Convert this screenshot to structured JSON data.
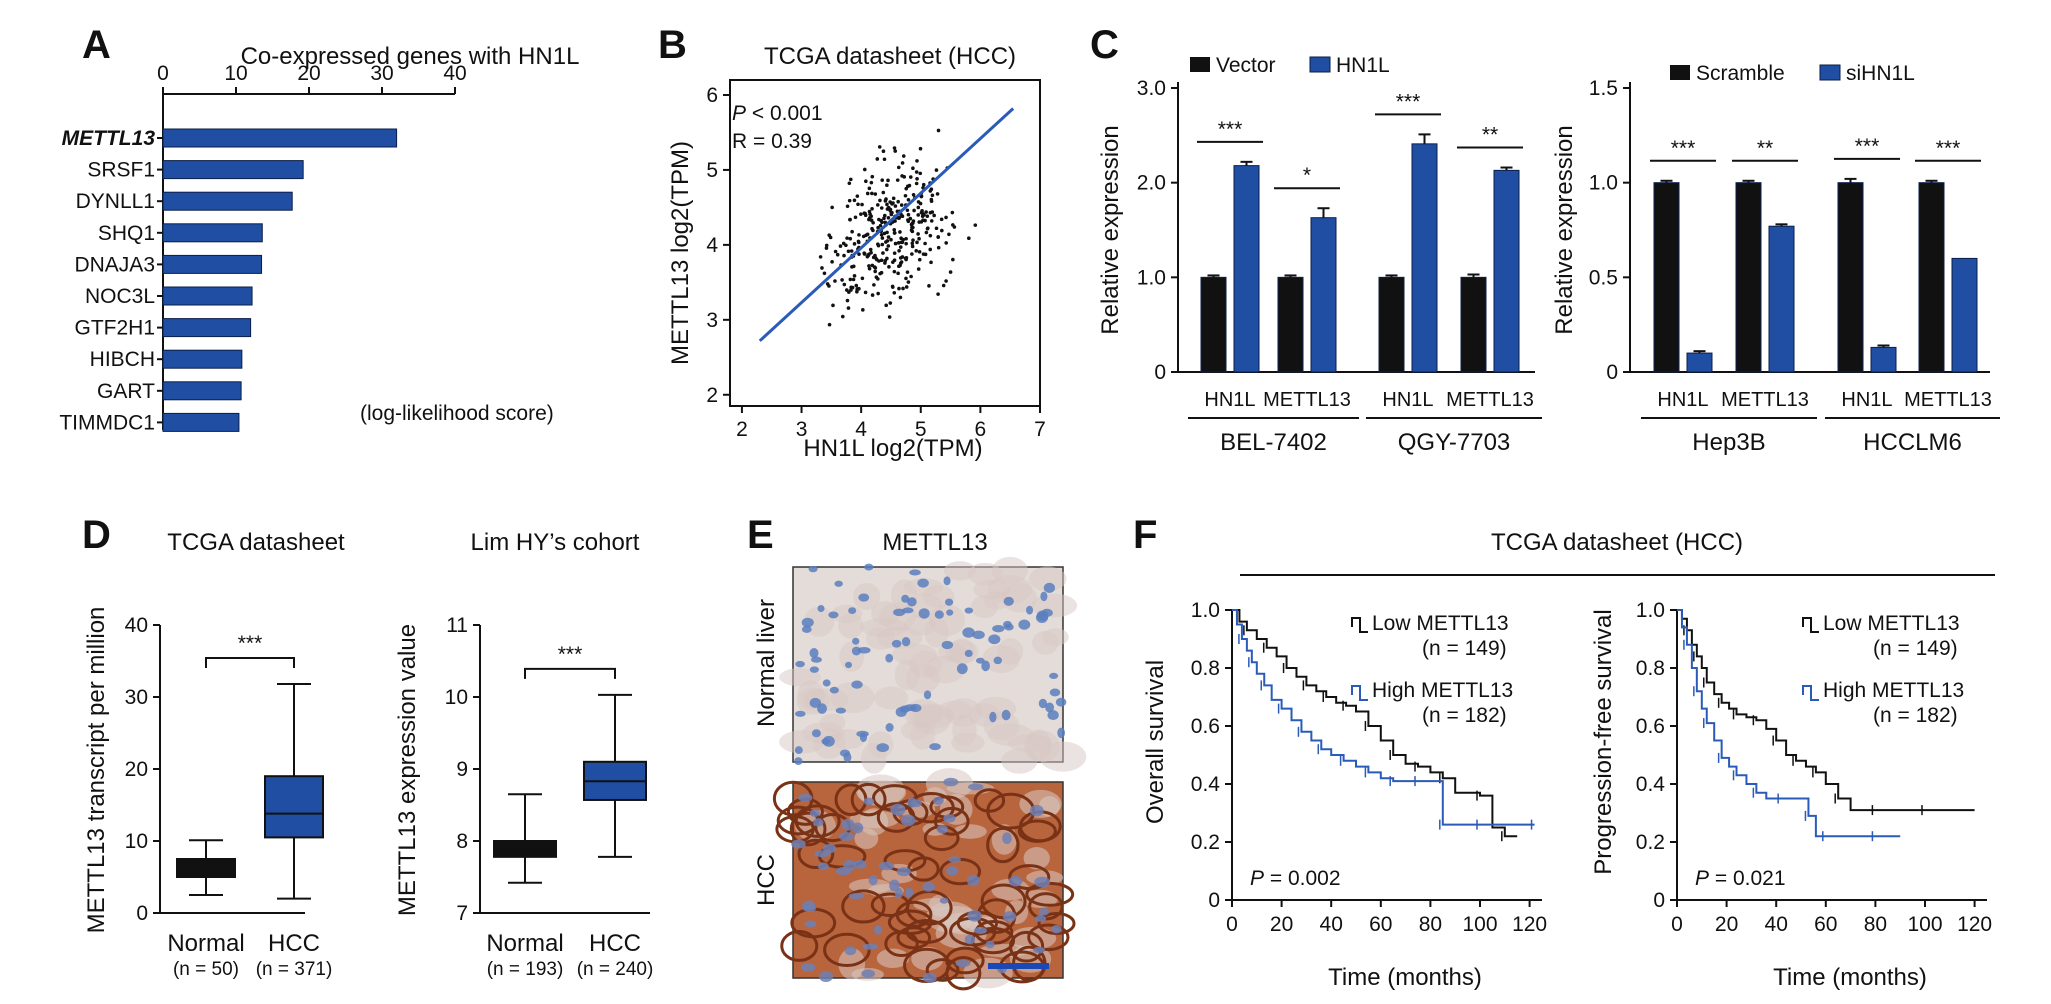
{
  "colors": {
    "blue": "#1f4ea3",
    "black": "#111111",
    "blue_line": "#2a5bb8"
  },
  "panelA": {
    "letter": "A",
    "title": "Co-expressed genes with HN1L",
    "xticks": [
      "0",
      "10",
      "20",
      "30",
      "40"
    ],
    "note": "(log-likelihood score)"
  },
  "panelB": {
    "letter": "B",
    "title": "TCGA datasheet (HCC)",
    "xlabel": "HN1L log2(TPM)",
    "ylabel": "METTL13 log2(TPM)",
    "xticks": [
      "2",
      "3",
      "4",
      "5",
      "6",
      "7"
    ],
    "yticks": [
      "2",
      "3",
      "4",
      "5",
      "6"
    ],
    "p_label": "P",
    "p_value": " < 0.001",
    "r_text": "R = 0.39"
  },
  "panelC": {
    "letter": "C",
    "ylabel": "Relative expression",
    "left": {
      "legend": [
        "Vector",
        "HN1L"
      ],
      "yticks": [
        "0",
        "1.0",
        "2.0",
        "3.0"
      ],
      "cats": [
        "HN1L",
        "METTL13",
        "HN1L",
        "METTL13"
      ],
      "groups": [
        "BEL-7402",
        "QGY-7703"
      ],
      "sig": [
        "***",
        "*",
        "***",
        "**"
      ]
    },
    "right": {
      "legend": [
        "Scramble",
        "siHN1L"
      ],
      "yticks": [
        "0",
        "0.5",
        "1.0",
        "1.5"
      ],
      "cats": [
        "HN1L",
        "METTL13",
        "HN1L",
        "METTL13"
      ],
      "groups": [
        "Hep3B",
        "HCCLM6"
      ],
      "sig": [
        "***",
        "**",
        "***",
        "***"
      ]
    }
  },
  "panelD": {
    "letter": "D",
    "left": {
      "title": "TCGA datasheet",
      "ylabel": "METTL13 transcript per million",
      "yticks": [
        "0",
        "10",
        "20",
        "30",
        "40"
      ],
      "cats": [
        "Normal",
        "HCC"
      ],
      "ns": [
        "(n = 50)",
        "(n = 371)"
      ],
      "sig": "***"
    },
    "right": {
      "title": "Lim HY’s cohort",
      "ylabel": "METTL13 expression value",
      "yticks": [
        "7",
        "8",
        "9",
        "10",
        "11"
      ],
      "cats": [
        "Normal",
        "HCC"
      ],
      "ns": [
        "(n = 193)",
        "(n = 240)"
      ],
      "sig": "***"
    }
  },
  "panelE": {
    "letter": "E",
    "title": "METTL13",
    "rows": [
      "Normal liver",
      "HCC"
    ]
  },
  "panelF": {
    "letter": "F",
    "title": "TCGA datasheet (HCC)",
    "xlabel": "Time (months)",
    "xticks": [
      "0",
      "20",
      "40",
      "60",
      "80",
      "100",
      "120"
    ],
    "yticks": [
      "0",
      "0.2",
      "0.4",
      "0.6",
      "0.8",
      "1.0"
    ],
    "left": {
      "ylabel": "Overall survival",
      "p_label": "P",
      "p_value": " = 0.002",
      "low_label": "Low METTL13",
      "low_n": "(n = 149)",
      "high_label": "High METTL13",
      "high_n": "(n = 182)"
    },
    "right": {
      "ylabel": "Progression-free survival",
      "p_label": "P",
      "p_value": " = 0.021",
      "low_label": "Low METTL13",
      "low_n": "(n = 149)",
      "high_label": "High METTL13",
      "high_n": "(n = 182)"
    }
  },
  "chart_data": [
    {
      "panel": "A",
      "type": "bar",
      "orientation": "horizontal",
      "title": "Co-expressed genes with HN1L",
      "categories": [
        "METTL13",
        "SRSF1",
        "DYNLL1",
        "SHQ1",
        "DNAJA3",
        "NOC3L",
        "GTF2H1",
        "HIBCH",
        "GART",
        "TIMMDC1"
      ],
      "values": [
        32,
        19.2,
        17.7,
        13.6,
        13.5,
        12.2,
        12.0,
        10.8,
        10.7,
        10.4
      ],
      "xlim": [
        0,
        40
      ]
    },
    {
      "panel": "B",
      "type": "scatter",
      "title": "TCGA datasheet (HCC)",
      "xlabel": "HN1L log2(TPM)",
      "ylabel": "METTL13 log2(TPM)",
      "xlim": [
        1.8,
        7
      ],
      "ylim": [
        1.85,
        6.2
      ],
      "fit_line": [
        [
          2.3,
          2.72
        ],
        [
          6.55,
          5.82
        ]
      ],
      "n_points": 350
    },
    {
      "panel": "C-left",
      "type": "bar",
      "ylabel": "Relative expression",
      "ylim": [
        0,
        3
      ],
      "categories": [
        "BEL-7402 HN1L",
        "BEL-7402 METTL13",
        "QGY-7703 HN1L",
        "QGY-7703 METTL13"
      ],
      "series": [
        {
          "name": "Vector",
          "values": [
            1.0,
            1.0,
            1.0,
            1.0
          ],
          "err": [
            0.02,
            0.02,
            0.02,
            0.03
          ]
        },
        {
          "name": "HN1L",
          "values": [
            2.18,
            1.63,
            2.41,
            2.13
          ],
          "err": [
            0.04,
            0.1,
            0.1,
            0.03
          ]
        }
      ]
    },
    {
      "panel": "C-right",
      "type": "bar",
      "ylabel": "Relative expression",
      "ylim": [
        0,
        1.5
      ],
      "categories": [
        "Hep3B HN1L",
        "Hep3B METTL13",
        "HCCLM6 HN1L",
        "HCCLM6 METTL13"
      ],
      "series": [
        {
          "name": "Scramble",
          "values": [
            1.0,
            1.0,
            1.0,
            1.0
          ],
          "err": [
            0.01,
            0.01,
            0.02,
            0.01
          ]
        },
        {
          "name": "siHN1L",
          "values": [
            0.1,
            0.77,
            0.13,
            0.6
          ],
          "err": [
            0.01,
            0.01,
            0.01,
            0.0
          ]
        }
      ]
    },
    {
      "panel": "D-left",
      "type": "box",
      "title": "TCGA datasheet",
      "ylabel": "METTL13 transcript per million",
      "ylim": [
        0,
        40
      ],
      "categories": [
        "Normal",
        "HCC"
      ],
      "boxes": [
        {
          "min": 2.5,
          "q1": 5.0,
          "median": 6.2,
          "q3": 7.5,
          "max": 10.1
        },
        {
          "min": 2.0,
          "q1": 10.5,
          "median": 13.8,
          "q3": 19.0,
          "max": 31.8
        }
      ]
    },
    {
      "panel": "D-right",
      "type": "box",
      "title": "Lim HY’s cohort",
      "ylabel": "METTL13 expression value",
      "ylim": [
        7,
        11
      ],
      "categories": [
        "Normal",
        "HCC"
      ],
      "boxes": [
        {
          "min": 7.42,
          "q1": 7.78,
          "median": 7.88,
          "q3": 8.0,
          "max": 8.65
        },
        {
          "min": 7.78,
          "q1": 8.57,
          "median": 8.83,
          "q3": 9.1,
          "max": 10.03
        }
      ]
    },
    {
      "panel": "F-left",
      "type": "line",
      "title": "TCGA datasheet (HCC)",
      "xlabel": "Time (months)",
      "ylabel": "Overall survival",
      "xlim": [
        0,
        125
      ],
      "ylim": [
        0,
        1.0
      ],
      "series": [
        {
          "name": "Low METTL13",
          "x": [
            0,
            3,
            6,
            10,
            14,
            18,
            22,
            26,
            30,
            34,
            38,
            42,
            46,
            50,
            55,
            60,
            65,
            70,
            75,
            80,
            85,
            90,
            100,
            105,
            110,
            115
          ],
          "y": [
            1.0,
            0.96,
            0.93,
            0.9,
            0.87,
            0.84,
            0.8,
            0.77,
            0.74,
            0.72,
            0.7,
            0.68,
            0.67,
            0.65,
            0.6,
            0.55,
            0.5,
            0.47,
            0.46,
            0.44,
            0.42,
            0.37,
            0.36,
            0.25,
            0.22,
            0.22
          ]
        },
        {
          "name": "High METTL13",
          "x": [
            0,
            2,
            4,
            6,
            8,
            10,
            13,
            16,
            20,
            24,
            28,
            32,
            36,
            40,
            45,
            50,
            55,
            60,
            65,
            70,
            75,
            80,
            85,
            90,
            100,
            110,
            122
          ],
          "y": [
            1.0,
            0.95,
            0.9,
            0.86,
            0.82,
            0.78,
            0.74,
            0.69,
            0.66,
            0.62,
            0.58,
            0.55,
            0.52,
            0.5,
            0.48,
            0.46,
            0.44,
            0.42,
            0.41,
            0.41,
            0.41,
            0.41,
            0.26,
            0.26,
            0.26,
            0.26,
            0.26
          ]
        }
      ]
    },
    {
      "panel": "F-right",
      "type": "line",
      "xlabel": "Time (months)",
      "ylabel": "Progression-free survival",
      "xlim": [
        0,
        125
      ],
      "ylim": [
        0,
        1.0
      ],
      "series": [
        {
          "name": "Low METTL13",
          "x": [
            0,
            2,
            4,
            6,
            8,
            10,
            12,
            15,
            18,
            21,
            24,
            28,
            32,
            36,
            40,
            44,
            48,
            52,
            56,
            60,
            65,
            70,
            80,
            90,
            100,
            120
          ],
          "y": [
            1.0,
            0.97,
            0.93,
            0.88,
            0.84,
            0.8,
            0.75,
            0.71,
            0.68,
            0.66,
            0.64,
            0.63,
            0.62,
            0.59,
            0.55,
            0.5,
            0.48,
            0.46,
            0.44,
            0.4,
            0.35,
            0.31,
            0.31,
            0.31,
            0.31,
            0.31
          ]
        },
        {
          "name": "High METTL13",
          "x": [
            0,
            2,
            4,
            6,
            8,
            10,
            12,
            15,
            18,
            21,
            24,
            28,
            32,
            36,
            42,
            48,
            53,
            56,
            60,
            70,
            80,
            90
          ],
          "y": [
            1.0,
            0.94,
            0.88,
            0.8,
            0.72,
            0.66,
            0.61,
            0.55,
            0.49,
            0.46,
            0.43,
            0.4,
            0.37,
            0.35,
            0.35,
            0.35,
            0.29,
            0.22,
            0.22,
            0.22,
            0.22,
            0.22
          ]
        }
      ]
    }
  ]
}
